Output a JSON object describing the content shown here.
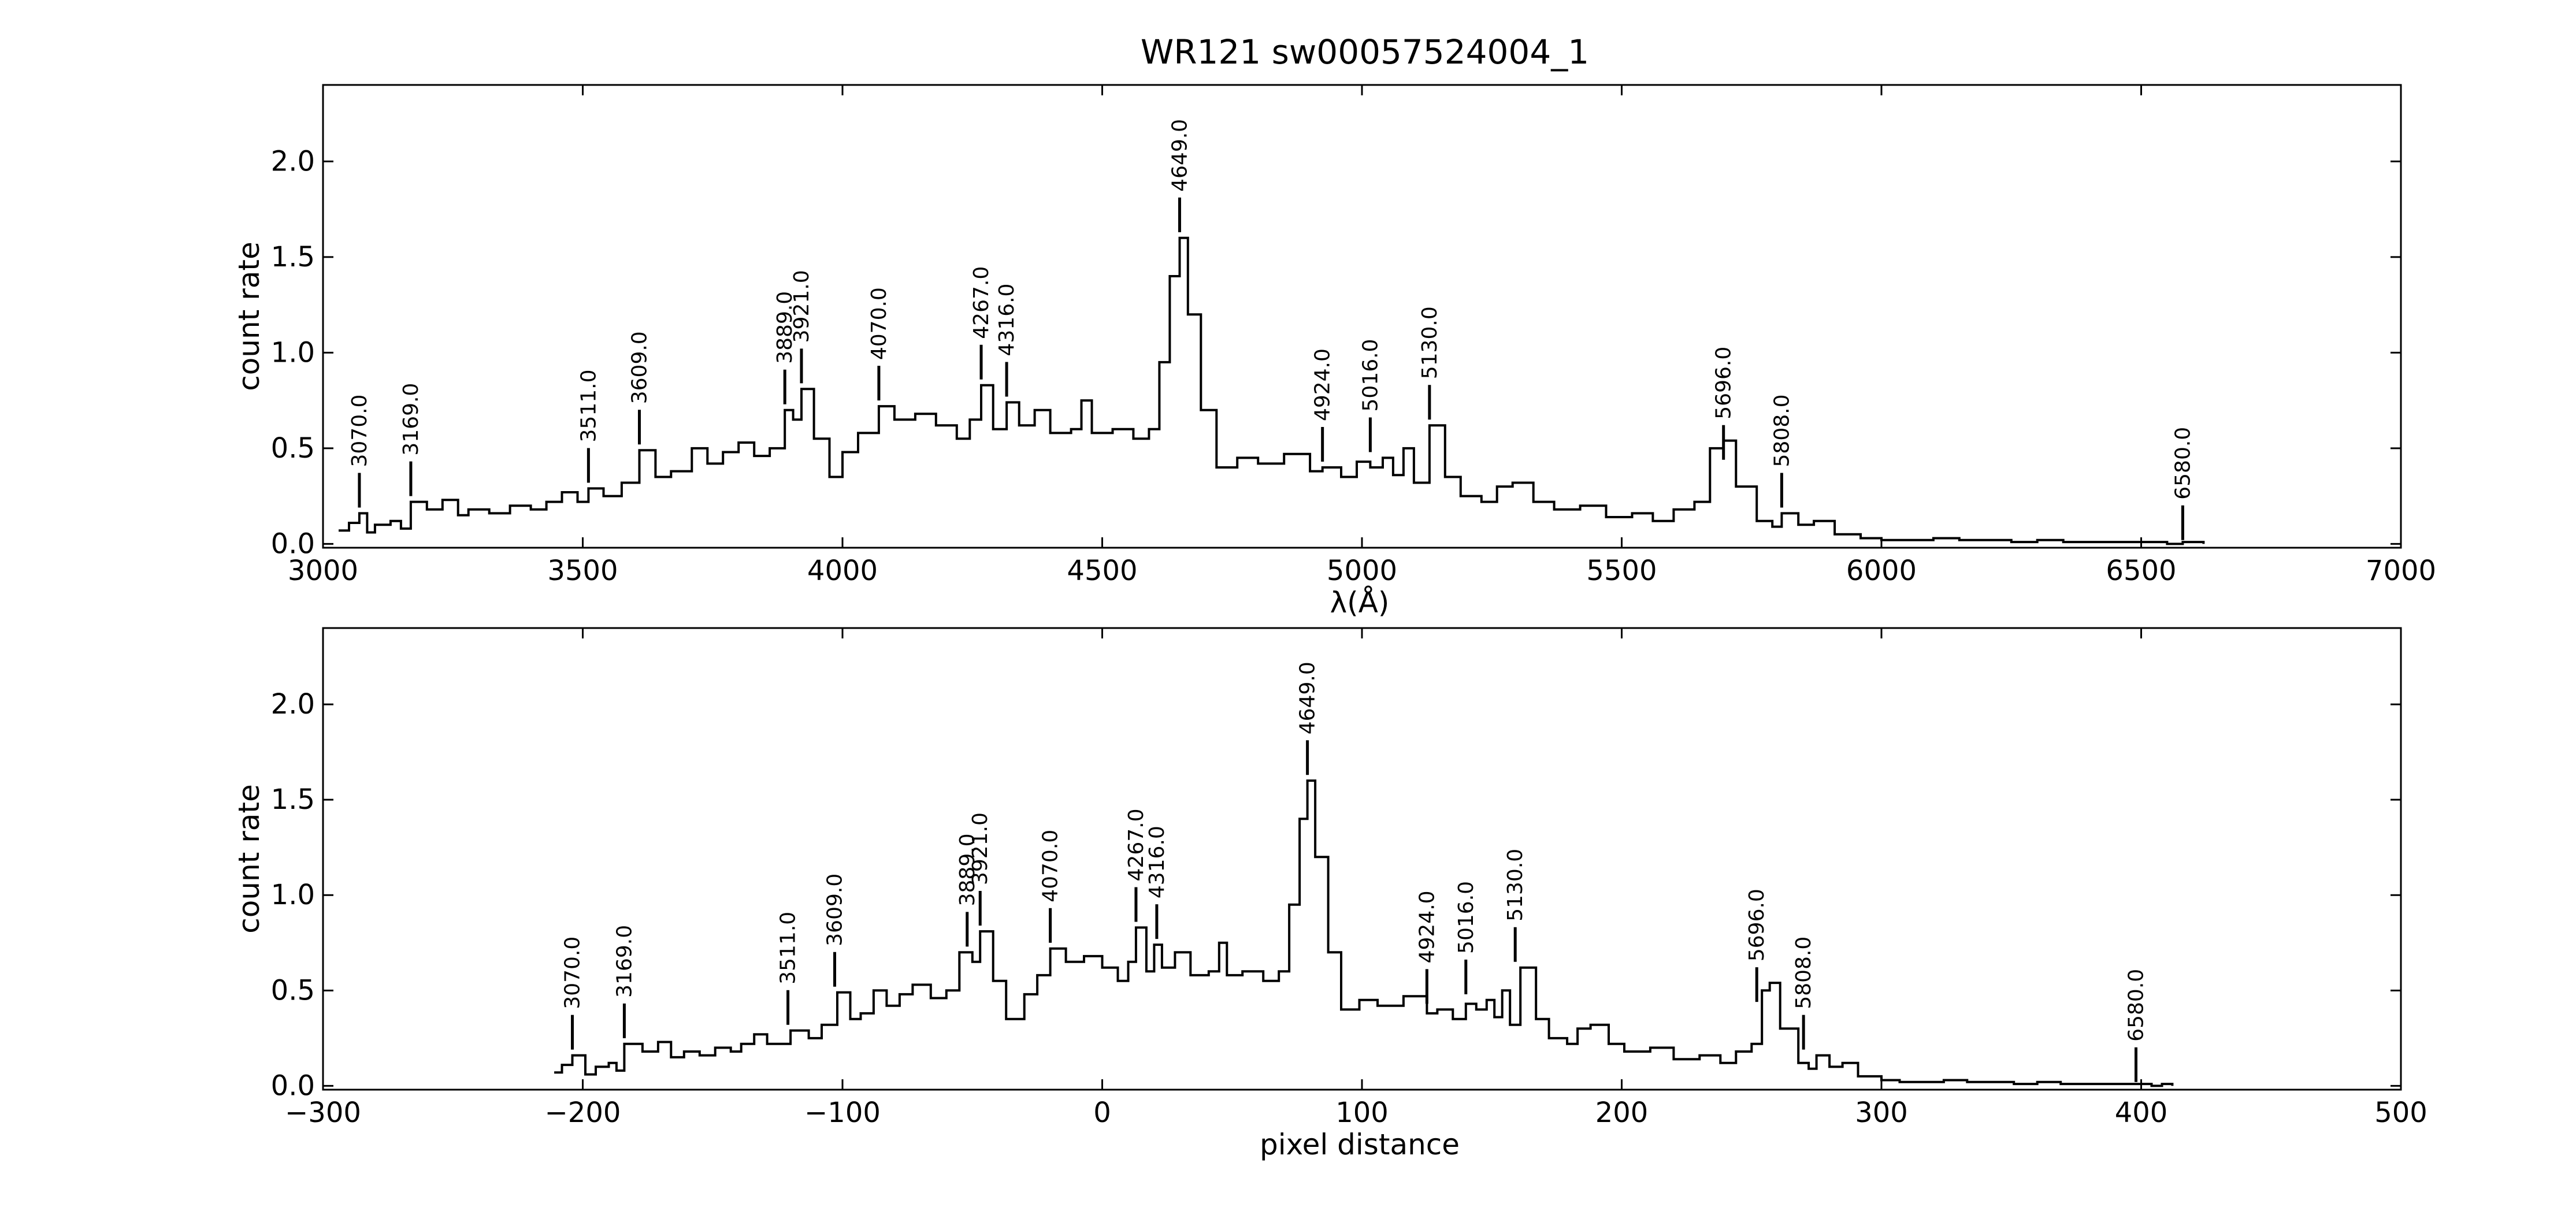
{
  "figure": {
    "title": "WR121  sw00057524004_1"
  },
  "chart_data": [
    {
      "type": "line",
      "panel": "top",
      "xlabel": "λ(Å)",
      "ylabel": "count rate",
      "xlim": [
        3000,
        7000
      ],
      "ylim": [
        -0.02,
        2.4
      ],
      "xticks": [
        3000,
        3500,
        4000,
        4500,
        5000,
        5500,
        6000,
        6500,
        7000
      ],
      "xtick_labels": [
        "3000",
        "3500",
        "4000",
        "4500",
        "5000",
        "5500",
        "6000",
        "6500",
        "7000"
      ],
      "yticks": [
        0.0,
        0.5,
        1.0,
        1.5,
        2.0
      ],
      "ytick_labels": [
        "0.0",
        "0.5",
        "1.0",
        "1.5",
        "2.0"
      ],
      "grid": false,
      "series": [
        {
          "x": [
            3030,
            3050,
            3070,
            3085,
            3100,
            3130,
            3150,
            3169,
            3200,
            3230,
            3260,
            3280,
            3320,
            3360,
            3400,
            3430,
            3460,
            3490,
            3511,
            3540,
            3575,
            3609,
            3640,
            3670,
            3710,
            3740,
            3770,
            3800,
            3830,
            3860,
            3889,
            3905,
            3921,
            3945,
            3975,
            4000,
            4030,
            4070,
            4100,
            4140,
            4180,
            4220,
            4245,
            4267,
            4290,
            4316,
            4340,
            4370,
            4400,
            4440,
            4460,
            4480,
            4520,
            4560,
            4590,
            4610,
            4630,
            4649,
            4665,
            4690,
            4720,
            4760,
            4800,
            4850,
            4900,
            4924,
            4960,
            4990,
            5016,
            5040,
            5060,
            5080,
            5100,
            5130,
            5160,
            5190,
            5230,
            5260,
            5290,
            5330,
            5370,
            5420,
            5470,
            5520,
            5560,
            5600,
            5640,
            5670,
            5696,
            5720,
            5760,
            5790,
            5808,
            5840,
            5870,
            5910,
            5960,
            6000,
            6050,
            6100,
            6150,
            6200,
            6250,
            6300,
            6350,
            6400,
            6450,
            6500,
            6550,
            6580,
            6620
          ],
          "y": [
            0.07,
            0.11,
            0.16,
            0.06,
            0.1,
            0.12,
            0.08,
            0.22,
            0.18,
            0.23,
            0.15,
            0.18,
            0.16,
            0.2,
            0.18,
            0.22,
            0.27,
            0.22,
            0.29,
            0.25,
            0.32,
            0.49,
            0.35,
            0.38,
            0.5,
            0.42,
            0.48,
            0.53,
            0.46,
            0.5,
            0.7,
            0.65,
            0.81,
            0.55,
            0.35,
            0.48,
            0.58,
            0.72,
            0.65,
            0.68,
            0.62,
            0.55,
            0.65,
            0.83,
            0.6,
            0.74,
            0.62,
            0.7,
            0.58,
            0.6,
            0.75,
            0.58,
            0.6,
            0.55,
            0.6,
            0.95,
            1.4,
            1.6,
            1.2,
            0.7,
            0.4,
            0.45,
            0.42,
            0.47,
            0.38,
            0.4,
            0.35,
            0.43,
            0.4,
            0.45,
            0.36,
            0.5,
            0.32,
            0.62,
            0.35,
            0.25,
            0.22,
            0.3,
            0.32,
            0.22,
            0.18,
            0.2,
            0.14,
            0.16,
            0.12,
            0.18,
            0.22,
            0.5,
            0.54,
            0.3,
            0.12,
            0.09,
            0.16,
            0.1,
            0.12,
            0.05,
            0.03,
            0.02,
            0.02,
            0.03,
            0.02,
            0.02,
            0.01,
            0.02,
            0.01,
            0.01,
            0.01,
            0.01,
            0.0,
            0.01,
            0.0
          ]
        }
      ],
      "line_markers": [
        {
          "x": 3070,
          "label": "3070.0",
          "y_base": 0.19
        },
        {
          "x": 3169,
          "label": "3169.0",
          "y_base": 0.25
        },
        {
          "x": 3511,
          "label": "3511.0",
          "y_base": 0.32
        },
        {
          "x": 3609,
          "label": "3609.0",
          "y_base": 0.52
        },
        {
          "x": 3889,
          "label": "3889.0",
          "y_base": 0.73
        },
        {
          "x": 3921,
          "label": "3921.0",
          "y_base": 0.84
        },
        {
          "x": 4070,
          "label": "4070.0",
          "y_base": 0.75
        },
        {
          "x": 4267,
          "label": "4267.0",
          "y_base": 0.86
        },
        {
          "x": 4316,
          "label": "4316.0",
          "y_base": 0.77
        },
        {
          "x": 4649,
          "label": "4649.0",
          "y_base": 1.63
        },
        {
          "x": 4924,
          "label": "4924.0",
          "y_base": 0.43
        },
        {
          "x": 5016,
          "label": "5016.0",
          "y_base": 0.48
        },
        {
          "x": 5130,
          "label": "5130.0",
          "y_base": 0.65
        },
        {
          "x": 5696,
          "label": "5696.0",
          "y_base": 0.44
        },
        {
          "x": 5808,
          "label": "5808.0",
          "y_base": 0.19
        },
        {
          "x": 6580,
          "label": "6580.0",
          "y_base": 0.02
        }
      ]
    },
    {
      "type": "line",
      "panel": "bottom",
      "xlabel": "pixel distance",
      "ylabel": "count rate",
      "xlim": [
        -300,
        500
      ],
      "ylim": [
        -0.02,
        2.4
      ],
      "xticks": [
        -300,
        -200,
        -100,
        0,
        100,
        200,
        300,
        400,
        500
      ],
      "xtick_labels": [
        "−300",
        "−200",
        "−100",
        "0",
        "100",
        "200",
        "300",
        "400",
        "500"
      ],
      "yticks": [
        0.0,
        0.5,
        1.0,
        1.5,
        2.0
      ],
      "ytick_labels": [
        "0.0",
        "0.5",
        "1.0",
        "1.5",
        "2.0"
      ],
      "grid": false,
      "series": [
        {
          "x": [
            -211,
            -208,
            -204,
            -199,
            -195,
            -190,
            -187,
            -184,
            -177,
            -171,
            -166,
            -161,
            -155,
            -149,
            -143,
            -139,
            -134,
            -129,
            -120,
            -113,
            -108,
            -102,
            -97,
            -93,
            -88,
            -83,
            -78,
            -73,
            -66,
            -60,
            -55,
            -50,
            -47,
            -42,
            -37,
            -30,
            -25,
            -20,
            -14,
            -7,
            0,
            6,
            10,
            13,
            17,
            20,
            23,
            28,
            34,
            41,
            45,
            48,
            54,
            62,
            68,
            72,
            76,
            79,
            82,
            87,
            92,
            99,
            106,
            116,
            125,
            129,
            135,
            140,
            144,
            148,
            151,
            154,
            157,
            161,
            167,
            172,
            179,
            183,
            188,
            195,
            201,
            211,
            220,
            230,
            238,
            244,
            250,
            254,
            257,
            261,
            268,
            272,
            275,
            280,
            285,
            291,
            300,
            307,
            316,
            324,
            333,
            342,
            351,
            360,
            369,
            378,
            387,
            396,
            404,
            408,
            412
          ],
          "y": [
            0.07,
            0.11,
            0.16,
            0.06,
            0.1,
            0.12,
            0.08,
            0.22,
            0.18,
            0.23,
            0.15,
            0.18,
            0.16,
            0.2,
            0.18,
            0.22,
            0.27,
            0.22,
            0.29,
            0.25,
            0.32,
            0.49,
            0.35,
            0.38,
            0.5,
            0.42,
            0.48,
            0.53,
            0.46,
            0.5,
            0.7,
            0.65,
            0.81,
            0.55,
            0.35,
            0.48,
            0.58,
            0.72,
            0.65,
            0.68,
            0.62,
            0.55,
            0.65,
            0.83,
            0.6,
            0.74,
            0.62,
            0.7,
            0.58,
            0.6,
            0.75,
            0.58,
            0.6,
            0.55,
            0.6,
            0.95,
            1.4,
            1.6,
            1.2,
            0.7,
            0.4,
            0.45,
            0.42,
            0.47,
            0.38,
            0.4,
            0.35,
            0.43,
            0.4,
            0.45,
            0.36,
            0.5,
            0.32,
            0.62,
            0.35,
            0.25,
            0.22,
            0.3,
            0.32,
            0.22,
            0.18,
            0.2,
            0.14,
            0.16,
            0.12,
            0.18,
            0.22,
            0.5,
            0.54,
            0.3,
            0.12,
            0.09,
            0.16,
            0.1,
            0.12,
            0.05,
            0.03,
            0.02,
            0.02,
            0.03,
            0.02,
            0.02,
            0.01,
            0.02,
            0.01,
            0.01,
            0.01,
            0.01,
            0.0,
            0.01,
            0.0
          ]
        }
      ],
      "line_markers": [
        {
          "x": -204,
          "label": "3070.0",
          "y_base": 0.19
        },
        {
          "x": -184,
          "label": "3169.0",
          "y_base": 0.25
        },
        {
          "x": -121,
          "label": "3511.0",
          "y_base": 0.32
        },
        {
          "x": -103,
          "label": "3609.0",
          "y_base": 0.52
        },
        {
          "x": -52,
          "label": "3889.0",
          "y_base": 0.73
        },
        {
          "x": -47,
          "label": "3921.0",
          "y_base": 0.84
        },
        {
          "x": -20,
          "label": "4070.0",
          "y_base": 0.75
        },
        {
          "x": 13,
          "label": "4267.0",
          "y_base": 0.86
        },
        {
          "x": 21,
          "label": "4316.0",
          "y_base": 0.77
        },
        {
          "x": 79,
          "label": "4649.0",
          "y_base": 1.63
        },
        {
          "x": 125,
          "label": "4924.0",
          "y_base": 0.43
        },
        {
          "x": 140,
          "label": "5016.0",
          "y_base": 0.48
        },
        {
          "x": 159,
          "label": "5130.0",
          "y_base": 0.65
        },
        {
          "x": 252,
          "label": "5696.0",
          "y_base": 0.44
        },
        {
          "x": 270,
          "label": "5808.0",
          "y_base": 0.19
        },
        {
          "x": 398,
          "label": "6580.0",
          "y_base": 0.02
        }
      ]
    }
  ]
}
